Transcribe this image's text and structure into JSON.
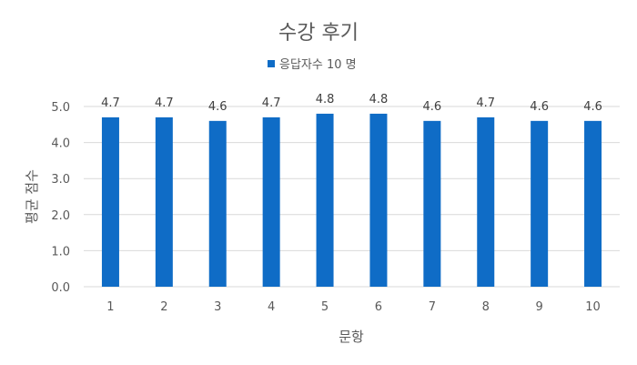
{
  "chart_data": {
    "type": "bar",
    "title": "수강 후기",
    "xlabel": "문항",
    "ylabel": "평균 점수",
    "categories": [
      "1",
      "2",
      "3",
      "4",
      "5",
      "6",
      "7",
      "8",
      "9",
      "10"
    ],
    "series": [
      {
        "name": "응답자수 10 명",
        "values": [
          4.7,
          4.7,
          4.6,
          4.7,
          4.8,
          4.8,
          4.6,
          4.7,
          4.6,
          4.6
        ],
        "color": "#0f6cc6"
      }
    ],
    "ylim": [
      0,
      5
    ],
    "yticks": [
      "0.0",
      "1.0",
      "2.0",
      "3.0",
      "4.0",
      "5.0"
    ],
    "grid": true,
    "legend": "top",
    "data_labels": [
      "4.7",
      "4.7",
      "4.6",
      "4.7",
      "4.8",
      "4.8",
      "4.6",
      "4.7",
      "4.6",
      "4.6"
    ]
  }
}
